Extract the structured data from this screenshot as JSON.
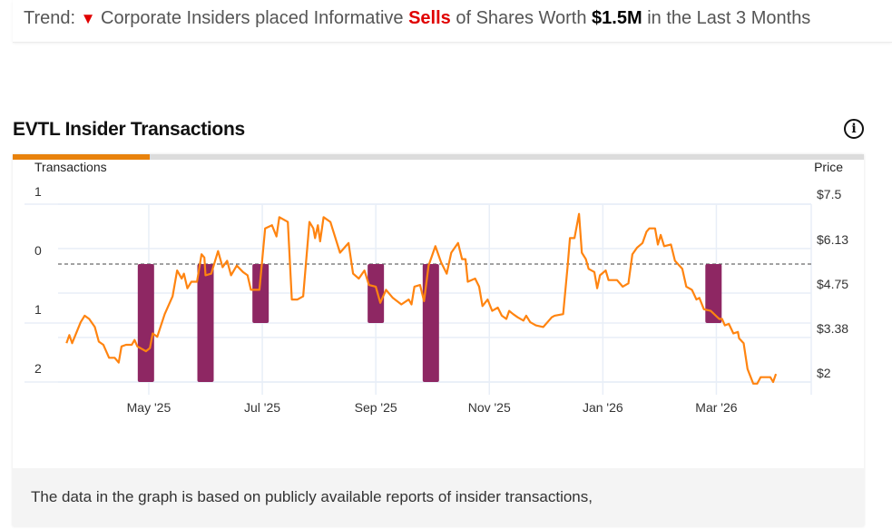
{
  "trend": {
    "prefix": "Trend:",
    "arrow_icon": "triangle-down",
    "text1": "Corporate Insiders placed Informative",
    "highlight": "Sells",
    "text2": "of Shares Worth",
    "amount": "$1.5M",
    "text3": "in the Last 3 Months",
    "colors": {
      "down": "#e00000",
      "text": "#555555"
    }
  },
  "section": {
    "title": "EVTL Insider Transactions",
    "info_icon": "info-circle"
  },
  "footer": {
    "note": "The data in the graph is based on publicly available reports of insider transactions,"
  },
  "colors": {
    "price_line": "#ff8410",
    "sell_bar": "#8e2763",
    "tab_active": "#e8820c"
  },
  "chart_data": {
    "type": "bar+line",
    "title": "EVTL Insider Transactions",
    "left_axis": {
      "label": "Transactions",
      "ticks": [
        "1",
        "0",
        "1",
        "2"
      ],
      "ylim": [
        -1,
        2
      ],
      "note": "sells plotted downward from 0"
    },
    "right_axis": {
      "label": "Price",
      "ticks": [
        "$7.5",
        "$6.13",
        "$4.75",
        "$3.38",
        "$2"
      ],
      "ylim": [
        2,
        7.5
      ]
    },
    "x_ticks": [
      "May '25",
      "Jul '25",
      "Sep '25",
      "Nov '25",
      "Jan '26",
      "Mar '26"
    ],
    "x_tick_months": [
      4,
      6,
      8,
      10,
      12,
      14
    ],
    "x_range_months": [
      2.45,
      15.4
    ],
    "grid": true,
    "zero_line": "dashed",
    "series": [
      {
        "name": "Insider Sells",
        "type": "bar",
        "points": [
          {
            "month": 3.95,
            "value": 2
          },
          {
            "month": 5.0,
            "value": 2
          },
          {
            "month": 5.97,
            "value": 1
          },
          {
            "month": 8.0,
            "value": 1
          },
          {
            "month": 8.97,
            "value": 2
          },
          {
            "month": 13.95,
            "value": 1
          }
        ]
      },
      {
        "name": "Price",
        "type": "line",
        "points": [
          [
            2.55,
            3.2
          ],
          [
            2.6,
            3.45
          ],
          [
            2.65,
            3.2
          ],
          [
            2.8,
            3.85
          ],
          [
            2.87,
            4.05
          ],
          [
            2.95,
            3.95
          ],
          [
            3.05,
            3.7
          ],
          [
            3.12,
            3.25
          ],
          [
            3.2,
            3.15
          ],
          [
            3.3,
            2.75
          ],
          [
            3.4,
            2.75
          ],
          [
            3.47,
            2.6
          ],
          [
            3.52,
            3.1
          ],
          [
            3.6,
            3.15
          ],
          [
            3.7,
            3.15
          ],
          [
            3.75,
            3.3
          ],
          [
            3.8,
            3.1
          ],
          [
            3.95,
            2.95
          ],
          [
            4.02,
            3.05
          ],
          [
            4.07,
            3.5
          ],
          [
            4.15,
            3.4
          ],
          [
            4.28,
            4.1
          ],
          [
            4.42,
            4.65
          ],
          [
            4.5,
            5.45
          ],
          [
            4.58,
            5.2
          ],
          [
            4.62,
            5.35
          ],
          [
            4.68,
            4.9
          ],
          [
            4.75,
            5.1
          ],
          [
            4.85,
            5.1
          ],
          [
            4.93,
            5.95
          ],
          [
            4.98,
            5.85
          ],
          [
            5.0,
            5.3
          ],
          [
            5.1,
            5.35
          ],
          [
            5.22,
            6.05
          ],
          [
            5.3,
            5.55
          ],
          [
            5.38,
            5.75
          ],
          [
            5.45,
            5.3
          ],
          [
            5.55,
            5.6
          ],
          [
            5.66,
            5.4
          ],
          [
            5.74,
            5.3
          ],
          [
            5.8,
            4.85
          ],
          [
            5.95,
            4.85
          ],
          [
            6.05,
            6.75
          ],
          [
            6.17,
            6.85
          ],
          [
            6.25,
            6.5
          ],
          [
            6.3,
            7.1
          ],
          [
            6.45,
            6.95
          ],
          [
            6.52,
            4.55
          ],
          [
            6.62,
            4.55
          ],
          [
            6.72,
            4.65
          ],
          [
            6.83,
            6.95
          ],
          [
            6.9,
            6.75
          ],
          [
            6.93,
            6.45
          ],
          [
            6.98,
            6.85
          ],
          [
            7.02,
            6.35
          ],
          [
            7.08,
            7.1
          ],
          [
            7.2,
            6.95
          ],
          [
            7.37,
            6.0
          ],
          [
            7.52,
            6.3
          ],
          [
            7.6,
            5.35
          ],
          [
            7.7,
            5.2
          ],
          [
            7.8,
            5.45
          ],
          [
            7.88,
            5.0
          ],
          [
            8.0,
            4.95
          ],
          [
            8.08,
            4.45
          ],
          [
            8.18,
            4.85
          ],
          [
            8.3,
            4.6
          ],
          [
            8.45,
            4.4
          ],
          [
            8.58,
            4.55
          ],
          [
            8.63,
            4.4
          ],
          [
            8.68,
            4.95
          ],
          [
            8.78,
            5.0
          ],
          [
            8.85,
            4.5
          ],
          [
            8.93,
            5.6
          ],
          [
            9.05,
            6.2
          ],
          [
            9.15,
            5.7
          ],
          [
            9.25,
            5.35
          ],
          [
            9.33,
            6.0
          ],
          [
            9.45,
            6.3
          ],
          [
            9.52,
            5.8
          ],
          [
            9.58,
            5.8
          ],
          [
            9.62,
            5.1
          ],
          [
            9.75,
            5.2
          ],
          [
            9.82,
            4.95
          ],
          [
            9.88,
            4.35
          ],
          [
            9.97,
            4.55
          ],
          [
            10.05,
            4.2
          ],
          [
            10.15,
            4.3
          ],
          [
            10.22,
            4.05
          ],
          [
            10.3,
            3.95
          ],
          [
            10.35,
            4.2
          ],
          [
            10.42,
            4.1
          ],
          [
            10.5,
            4.0
          ],
          [
            10.6,
            3.9
          ],
          [
            10.65,
            4.05
          ],
          [
            10.72,
            3.85
          ],
          [
            10.82,
            3.75
          ],
          [
            10.95,
            3.7
          ],
          [
            11.05,
            3.9
          ],
          [
            11.1,
            4.0
          ],
          [
            11.15,
            4.05
          ],
          [
            11.3,
            4.1
          ],
          [
            11.38,
            5.6
          ],
          [
            11.42,
            6.45
          ],
          [
            11.5,
            6.45
          ],
          [
            11.58,
            7.2
          ],
          [
            11.63,
            6.0
          ],
          [
            11.7,
            5.8
          ],
          [
            11.75,
            5.5
          ],
          [
            11.85,
            5.4
          ],
          [
            11.9,
            4.9
          ],
          [
            11.95,
            5.3
          ],
          [
            12.05,
            5.45
          ],
          [
            12.1,
            5.15
          ],
          [
            12.25,
            5.15
          ],
          [
            12.35,
            4.95
          ],
          [
            12.45,
            5.05
          ],
          [
            12.52,
            5.95
          ],
          [
            12.6,
            6.15
          ],
          [
            12.7,
            6.3
          ],
          [
            12.77,
            6.65
          ],
          [
            12.82,
            6.75
          ],
          [
            12.92,
            6.75
          ],
          [
            12.97,
            6.25
          ],
          [
            13.02,
            6.55
          ],
          [
            13.08,
            6.2
          ],
          [
            13.2,
            6.25
          ],
          [
            13.27,
            5.75
          ],
          [
            13.4,
            5.5
          ],
          [
            13.47,
            4.95
          ],
          [
            13.57,
            4.85
          ],
          [
            13.65,
            4.55
          ],
          [
            13.7,
            4.6
          ],
          [
            13.78,
            4.25
          ],
          [
            13.9,
            4.2
          ],
          [
            14.05,
            3.95
          ],
          [
            14.1,
            3.95
          ],
          [
            14.15,
            3.75
          ],
          [
            14.22,
            3.8
          ],
          [
            14.3,
            3.5
          ],
          [
            14.38,
            3.55
          ],
          [
            14.4,
            3.35
          ],
          [
            14.48,
            3.2
          ],
          [
            14.55,
            2.4
          ],
          [
            14.65,
            1.95
          ],
          [
            14.72,
            1.95
          ],
          [
            14.78,
            2.15
          ],
          [
            14.95,
            2.15
          ],
          [
            15.0,
            2.0
          ],
          [
            15.05,
            2.25
          ]
        ]
      }
    ]
  }
}
